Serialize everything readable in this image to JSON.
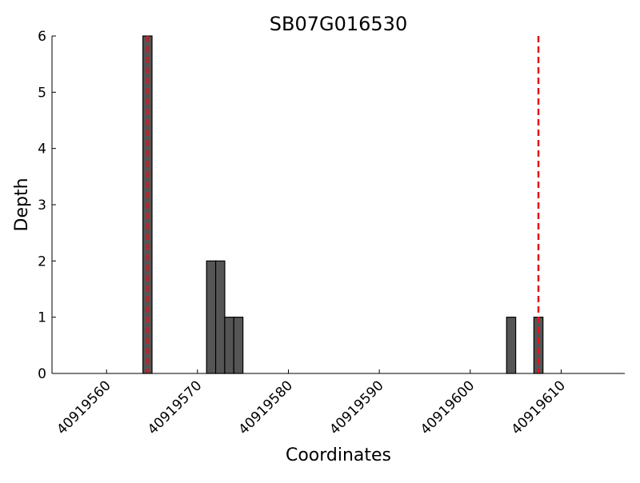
{
  "chart_data": {
    "type": "bar",
    "title": "SB07G016530",
    "xlabel": "Coordinates",
    "ylabel": "Depth",
    "xlim": [
      40919554,
      40919617
    ],
    "ylim": [
      0,
      6
    ],
    "xticks": [
      40919560,
      40919570,
      40919580,
      40919590,
      40919600,
      40919610
    ],
    "yticks": [
      0,
      1,
      2,
      3,
      4,
      5,
      6
    ],
    "bar_width": 1,
    "bars": [
      {
        "x": 40919564,
        "value": 6
      },
      {
        "x": 40919571,
        "value": 2
      },
      {
        "x": 40919572,
        "value": 2
      },
      {
        "x": 40919573,
        "value": 1
      },
      {
        "x": 40919574,
        "value": 1
      },
      {
        "x": 40919604,
        "value": 1
      },
      {
        "x": 40919607,
        "value": 1
      }
    ],
    "vlines": [
      40919564.5,
      40919607.5
    ],
    "grid": false,
    "colors": {
      "bar_fill": "#555555",
      "bar_edge": "#000000",
      "vline": "#e8101a"
    }
  }
}
